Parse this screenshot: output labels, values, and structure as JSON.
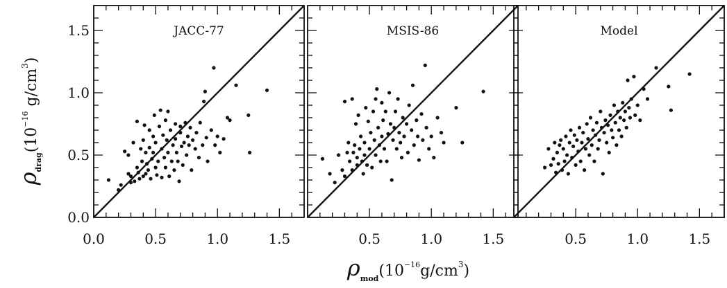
{
  "chart_data": [
    {
      "type": "scatter",
      "title": "JACC-77",
      "xlim": [
        0.0,
        1.7
      ],
      "ylim": [
        0.0,
        1.7
      ],
      "xticks": [
        "0.0",
        "0.5",
        "1.0",
        "1.5"
      ],
      "yticks": [
        "0.0",
        "0.5",
        "1.0",
        "1.5"
      ],
      "reference_line": "y = x",
      "points": [
        [
          0.12,
          0.3
        ],
        [
          0.2,
          0.22
        ],
        [
          0.22,
          0.26
        ],
        [
          0.25,
          0.53
        ],
        [
          0.28,
          0.5
        ],
        [
          0.28,
          0.35
        ],
        [
          0.3,
          0.28
        ],
        [
          0.3,
          0.33
        ],
        [
          0.32,
          0.6
        ],
        [
          0.33,
          0.29
        ],
        [
          0.35,
          0.77
        ],
        [
          0.35,
          0.4
        ],
        [
          0.36,
          0.36
        ],
        [
          0.37,
          0.31
        ],
        [
          0.38,
          0.55
        ],
        [
          0.39,
          0.45
        ],
        [
          0.4,
          0.33
        ],
        [
          0.4,
          0.62
        ],
        [
          0.41,
          0.74
        ],
        [
          0.42,
          0.52
        ],
        [
          0.42,
          0.35
        ],
        [
          0.43,
          0.43
        ],
        [
          0.44,
          0.38
        ],
        [
          0.45,
          0.7
        ],
        [
          0.45,
          0.56
        ],
        [
          0.46,
          0.31
        ],
        [
          0.47,
          0.47
        ],
        [
          0.48,
          0.52
        ],
        [
          0.48,
          0.65
        ],
        [
          0.49,
          0.82
        ],
        [
          0.5,
          0.4
        ],
        [
          0.5,
          0.6
        ],
        [
          0.51,
          0.34
        ],
        [
          0.52,
          0.45
        ],
        [
          0.53,
          0.73
        ],
        [
          0.54,
          0.86
        ],
        [
          0.55,
          0.55
        ],
        [
          0.55,
          0.32
        ],
        [
          0.56,
          0.66
        ],
        [
          0.57,
          0.48
        ],
        [
          0.58,
          0.78
        ],
        [
          0.58,
          0.4
        ],
        [
          0.59,
          0.62
        ],
        [
          0.6,
          0.85
        ],
        [
          0.6,
          0.52
        ],
        [
          0.61,
          0.33
        ],
        [
          0.62,
          0.7
        ],
        [
          0.63,
          0.45
        ],
        [
          0.64,
          0.58
        ],
        [
          0.65,
          0.38
        ],
        [
          0.66,
          0.75
        ],
        [
          0.66,
          0.63
        ],
        [
          0.67,
          0.52
        ],
        [
          0.68,
          0.45
        ],
        [
          0.69,
          0.29
        ],
        [
          0.7,
          0.68
        ],
        [
          0.7,
          0.73
        ],
        [
          0.71,
          0.57
        ],
        [
          0.72,
          0.42
        ],
        [
          0.73,
          0.6
        ],
        [
          0.74,
          0.76
        ],
        [
          0.75,
          0.5
        ],
        [
          0.76,
          0.65
        ],
        [
          0.77,
          0.58
        ],
        [
          0.78,
          0.72
        ],
        [
          0.79,
          0.38
        ],
        [
          0.8,
          0.62
        ],
        [
          0.82,
          0.55
        ],
        [
          0.83,
          0.68
        ],
        [
          0.85,
          0.48
        ],
        [
          0.86,
          0.76
        ],
        [
          0.88,
          0.58
        ],
        [
          0.89,
          0.93
        ],
        [
          0.9,
          1.01
        ],
        [
          0.91,
          0.64
        ],
        [
          0.92,
          0.45
        ],
        [
          0.95,
          0.7
        ],
        [
          0.97,
          1.2
        ],
        [
          0.98,
          0.58
        ],
        [
          1.0,
          0.65
        ],
        [
          1.02,
          0.52
        ],
        [
          1.05,
          0.63
        ],
        [
          1.08,
          0.8
        ],
        [
          1.1,
          0.78
        ],
        [
          1.15,
          1.06
        ],
        [
          1.25,
          0.82
        ],
        [
          1.26,
          0.52
        ],
        [
          1.4,
          1.02
        ]
      ]
    },
    {
      "type": "scatter",
      "title": "MSIS-86",
      "xlim": [
        0.0,
        1.7
      ],
      "ylim": [
        0.0,
        1.7
      ],
      "xticks": [
        "0.5",
        "1.0",
        "1.5"
      ],
      "reference_line": "y = x",
      "points": [
        [
          0.12,
          0.47
        ],
        [
          0.18,
          0.35
        ],
        [
          0.22,
          0.28
        ],
        [
          0.25,
          0.5
        ],
        [
          0.28,
          0.38
        ],
        [
          0.3,
          0.93
        ],
        [
          0.3,
          0.33
        ],
        [
          0.32,
          0.52
        ],
        [
          0.33,
          0.6
        ],
        [
          0.34,
          0.45
        ],
        [
          0.36,
          0.95
        ],
        [
          0.36,
          0.38
        ],
        [
          0.37,
          0.52
        ],
        [
          0.38,
          0.58
        ],
        [
          0.39,
          0.75
        ],
        [
          0.4,
          0.42
        ],
        [
          0.4,
          0.48
        ],
        [
          0.41,
          0.82
        ],
        [
          0.42,
          0.55
        ],
        [
          0.43,
          0.65
        ],
        [
          0.44,
          0.45
        ],
        [
          0.45,
          0.35
        ],
        [
          0.46,
          0.6
        ],
        [
          0.46,
          0.5
        ],
        [
          0.47,
          0.88
        ],
        [
          0.48,
          0.42
        ],
        [
          0.49,
          0.77
        ],
        [
          0.5,
          0.55
        ],
        [
          0.51,
          0.68
        ],
        [
          0.52,
          0.4
        ],
        [
          0.53,
          0.85
        ],
        [
          0.54,
          0.62
        ],
        [
          0.55,
          0.95
        ],
        [
          0.55,
          0.5
        ],
        [
          0.56,
          1.03
        ],
        [
          0.57,
          0.72
        ],
        [
          0.58,
          0.58
        ],
        [
          0.59,
          0.45
        ],
        [
          0.6,
          0.92
        ],
        [
          0.6,
          0.65
        ],
        [
          0.61,
          0.78
        ],
        [
          0.62,
          0.55
        ],
        [
          0.63,
          0.85
        ],
        [
          0.64,
          0.45
        ],
        [
          0.65,
          0.67
        ],
        [
          0.66,
          1.0
        ],
        [
          0.67,
          0.75
        ],
        [
          0.68,
          0.3
        ],
        [
          0.69,
          0.62
        ],
        [
          0.7,
          0.72
        ],
        [
          0.71,
          0.85
        ],
        [
          0.72,
          0.55
        ],
        [
          0.73,
          0.95
        ],
        [
          0.74,
          0.68
        ],
        [
          0.75,
          0.6
        ],
        [
          0.76,
          0.48
        ],
        [
          0.77,
          0.8
        ],
        [
          0.78,
          0.65
        ],
        [
          0.8,
          0.75
        ],
        [
          0.81,
          0.52
        ],
        [
          0.82,
          0.9
        ],
        [
          0.84,
          0.7
        ],
        [
          0.85,
          1.06
        ],
        [
          0.86,
          0.58
        ],
        [
          0.88,
          0.78
        ],
        [
          0.89,
          0.65
        ],
        [
          0.9,
          0.46
        ],
        [
          0.92,
          0.83
        ],
        [
          0.93,
          0.62
        ],
        [
          0.95,
          1.22
        ],
        [
          0.96,
          0.72
        ],
        [
          0.98,
          0.55
        ],
        [
          1.0,
          0.65
        ],
        [
          1.02,
          0.48
        ],
        [
          1.05,
          0.8
        ],
        [
          1.08,
          0.68
        ],
        [
          1.1,
          0.6
        ],
        [
          1.2,
          0.88
        ],
        [
          1.25,
          0.6
        ],
        [
          1.42,
          1.01
        ]
      ]
    },
    {
      "type": "scatter",
      "title": "Model",
      "xlim": [
        0.0,
        1.7
      ],
      "ylim": [
        0.0,
        1.7
      ],
      "xticks": [
        "0.5",
        "1.0",
        "1.5"
      ],
      "reference_line": "y = x",
      "points": [
        [
          0.25,
          0.4
        ],
        [
          0.28,
          0.55
        ],
        [
          0.3,
          0.42
        ],
        [
          0.32,
          0.47
        ],
        [
          0.33,
          0.6
        ],
        [
          0.34,
          0.36
        ],
        [
          0.35,
          0.52
        ],
        [
          0.36,
          0.43
        ],
        [
          0.37,
          0.58
        ],
        [
          0.38,
          0.62
        ],
        [
          0.39,
          0.38
        ],
        [
          0.4,
          0.55
        ],
        [
          0.41,
          0.45
        ],
        [
          0.42,
          0.65
        ],
        [
          0.43,
          0.5
        ],
        [
          0.44,
          0.35
        ],
        [
          0.45,
          0.6
        ],
        [
          0.46,
          0.7
        ],
        [
          0.47,
          0.48
        ],
        [
          0.48,
          0.57
        ],
        [
          0.49,
          0.66
        ],
        [
          0.5,
          0.42
        ],
        [
          0.51,
          0.62
        ],
        [
          0.52,
          0.53
        ],
        [
          0.53,
          0.72
        ],
        [
          0.54,
          0.45
        ],
        [
          0.55,
          0.6
        ],
        [
          0.56,
          0.68
        ],
        [
          0.57,
          0.38
        ],
        [
          0.58,
          0.55
        ],
        [
          0.59,
          0.75
        ],
        [
          0.6,
          0.63
        ],
        [
          0.61,
          0.5
        ],
        [
          0.62,
          0.8
        ],
        [
          0.63,
          0.58
        ],
        [
          0.64,
          0.7
        ],
        [
          0.65,
          0.45
        ],
        [
          0.66,
          0.66
        ],
        [
          0.67,
          0.76
        ],
        [
          0.68,
          0.55
        ],
        [
          0.69,
          0.62
        ],
        [
          0.7,
          0.85
        ],
        [
          0.71,
          0.72
        ],
        [
          0.72,
          0.35
        ],
        [
          0.73,
          0.68
        ],
        [
          0.74,
          0.78
        ],
        [
          0.75,
          0.6
        ],
        [
          0.76,
          0.74
        ],
        [
          0.77,
          0.52
        ],
        [
          0.78,
          0.82
        ],
        [
          0.79,
          0.7
        ],
        [
          0.8,
          0.64
        ],
        [
          0.81,
          0.9
        ],
        [
          0.82,
          0.76
        ],
        [
          0.83,
          0.58
        ],
        [
          0.84,
          0.85
        ],
        [
          0.85,
          0.7
        ],
        [
          0.86,
          0.8
        ],
        [
          0.87,
          0.65
        ],
        [
          0.88,
          0.92
        ],
        [
          0.89,
          0.78
        ],
        [
          0.9,
          0.85
        ],
        [
          0.91,
          0.72
        ],
        [
          0.92,
          1.1
        ],
        [
          0.93,
          0.88
        ],
        [
          0.94,
          0.8
        ],
        [
          0.95,
          0.95
        ],
        [
          0.97,
          1.13
        ],
        [
          0.98,
          0.82
        ],
        [
          1.0,
          0.9
        ],
        [
          1.02,
          0.78
        ],
        [
          1.05,
          1.03
        ],
        [
          1.08,
          0.95
        ],
        [
          1.15,
          1.2
        ],
        [
          1.25,
          1.05
        ],
        [
          1.27,
          0.86
        ],
        [
          1.42,
          1.15
        ]
      ]
    }
  ],
  "y_axis_title": {
    "symbol": "ρ",
    "subscript": "drag",
    "open": "(10",
    "exponent": "−16",
    "unit": " g/cm",
    "unit_exponent": "3",
    "close": ")"
  },
  "x_axis_title": {
    "symbol": "ρ",
    "subscript": "mod",
    "open": "(10",
    "exponent": "−16",
    "unit": "g/cm",
    "unit_exponent": "3",
    "close": ")"
  }
}
